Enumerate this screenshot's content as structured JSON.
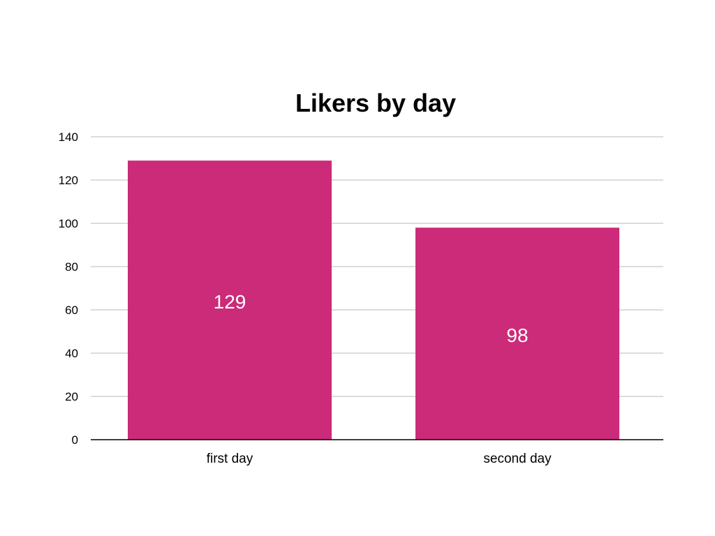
{
  "chart_data": {
    "type": "bar",
    "title": "Likers by day",
    "xlabel": "",
    "ylabel": "",
    "categories": [
      "first day",
      "second day"
    ],
    "values": [
      129,
      98
    ],
    "value_labels": [
      "129",
      "98"
    ],
    "ylim": [
      0,
      140
    ],
    "yticks": [
      0,
      20,
      40,
      60,
      80,
      100,
      120,
      140
    ],
    "ytick_labels": [
      "0",
      "20",
      "40",
      "60",
      "80",
      "100",
      "120",
      "140"
    ],
    "grid": true,
    "legend": "none",
    "bar_color": "#cb2b79"
  }
}
